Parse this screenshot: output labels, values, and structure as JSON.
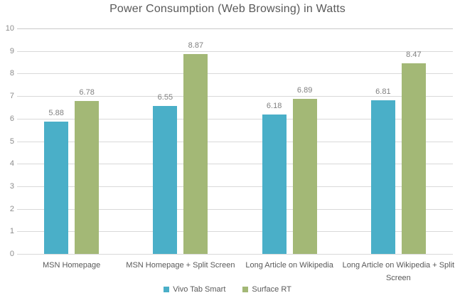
{
  "chart_data": {
    "type": "bar",
    "title": "Power Consumption (Web Browsing) in Watts",
    "categories": [
      "MSN Homepage",
      "MSN Homepage + Split Screen",
      "Long Article on Wikipedia",
      "Long Article on Wikipedia + Split Screen"
    ],
    "series": [
      {
        "name": "Vivo Tab Smart",
        "color": "#4AAFC8",
        "values": [
          5.88,
          6.55,
          6.18,
          6.81
        ]
      },
      {
        "name": "Surface RT",
        "color": "#A3B876",
        "values": [
          6.78,
          8.87,
          6.89,
          8.47
        ]
      }
    ],
    "xlabel": "",
    "ylabel": "",
    "ylim": [
      0,
      10
    ],
    "ytick_step": 1,
    "grid": true,
    "legend_position": "bottom",
    "colors": {
      "gridline": "#d9d9d9",
      "tick_text": "#8c8c8c",
      "value_text": "#808080",
      "category_text": "#595959",
      "title_text": "#595959"
    }
  }
}
